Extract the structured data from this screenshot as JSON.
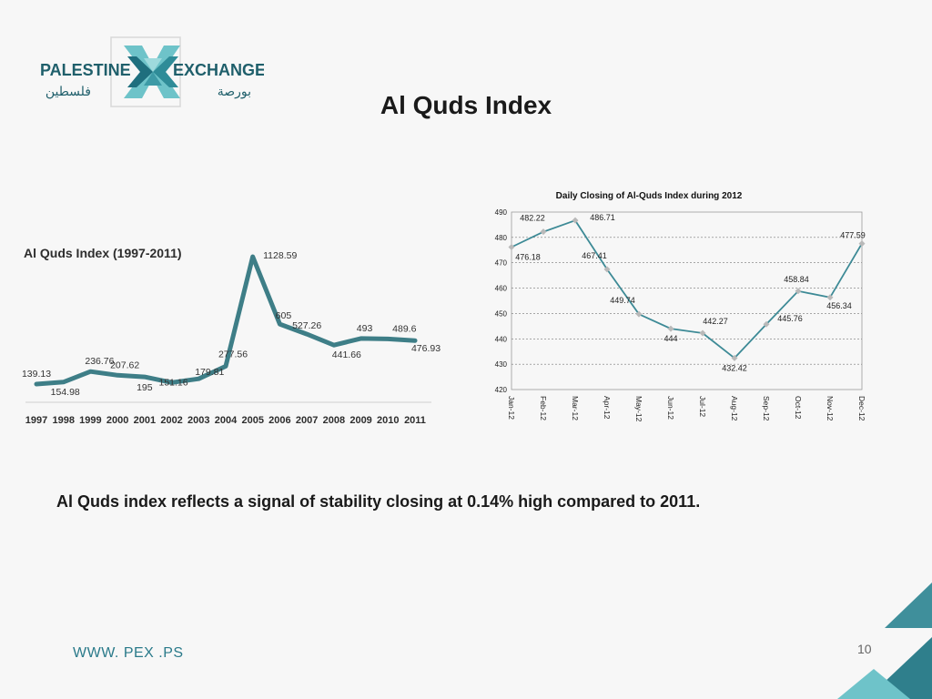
{
  "logo": {
    "name_en_left": "PALESTINE",
    "name_en_right": "EXCHANGE",
    "name_ar_left": "فلسطين",
    "name_ar_right": "بورصة"
  },
  "slide": {
    "title": "Al Quds Index",
    "summary": "Al Quds index reflects a signal of stability closing at 0.14% high compared to 2011.",
    "footer_url": "WWW. PEX .PS",
    "page_number": "10"
  },
  "colors": {
    "teal": "#3d8a96",
    "teal_dark": "#1f6f7e",
    "teal_light": "#6ec3c9",
    "marker": "#b9b9b9",
    "line_annual": "#3e7e87"
  },
  "chart_data": [
    {
      "type": "line",
      "title": "Al Quds Index (1997-2011)",
      "x": [
        "1997",
        "1998",
        "1999",
        "2000",
        "2001",
        "2002",
        "2003",
        "2004",
        "2005",
        "2006",
        "2007",
        "2008",
        "2009",
        "2010",
        "2011"
      ],
      "values": [
        139.13,
        154.98,
        236.76,
        207.62,
        195,
        151.16,
        179.81,
        277.56,
        1128.59,
        605,
        527.26,
        441.66,
        493,
        489.6,
        476.93
      ],
      "labels": [
        "139.13",
        "154.98",
        "236.76",
        "207.62",
        "195",
        "151.16",
        "179.81",
        "277.56",
        "1128.59",
        "605",
        "527.26",
        "441.66",
        "493",
        "489.6",
        "476.93"
      ],
      "grid": false,
      "legend": "none"
    },
    {
      "type": "line",
      "title": "Daily Closing of Al-Quds Index during 2012",
      "x": [
        "Jan-12",
        "Feb-12",
        "Mar-12",
        "Apr-12",
        "May-12",
        "Jun-12",
        "Jul-12",
        "Aug-12",
        "Sep-12",
        "Oct-12",
        "Nov-12",
        "Dec-12"
      ],
      "values": [
        476.18,
        482.22,
        486.71,
        467.41,
        449.74,
        444,
        442.27,
        432.42,
        445.76,
        458.84,
        456.34,
        477.59
      ],
      "labels": [
        "476.18",
        "482.22",
        "486.71",
        "467.41",
        "449.74",
        "444",
        "442.27",
        "432.42",
        "445.76",
        "458.84",
        "456.34",
        "477.59"
      ],
      "y_ticks": [
        420,
        430,
        440,
        450,
        460,
        470,
        480,
        490
      ],
      "ylim": [
        420,
        490
      ],
      "grid": true,
      "legend": "none"
    }
  ]
}
